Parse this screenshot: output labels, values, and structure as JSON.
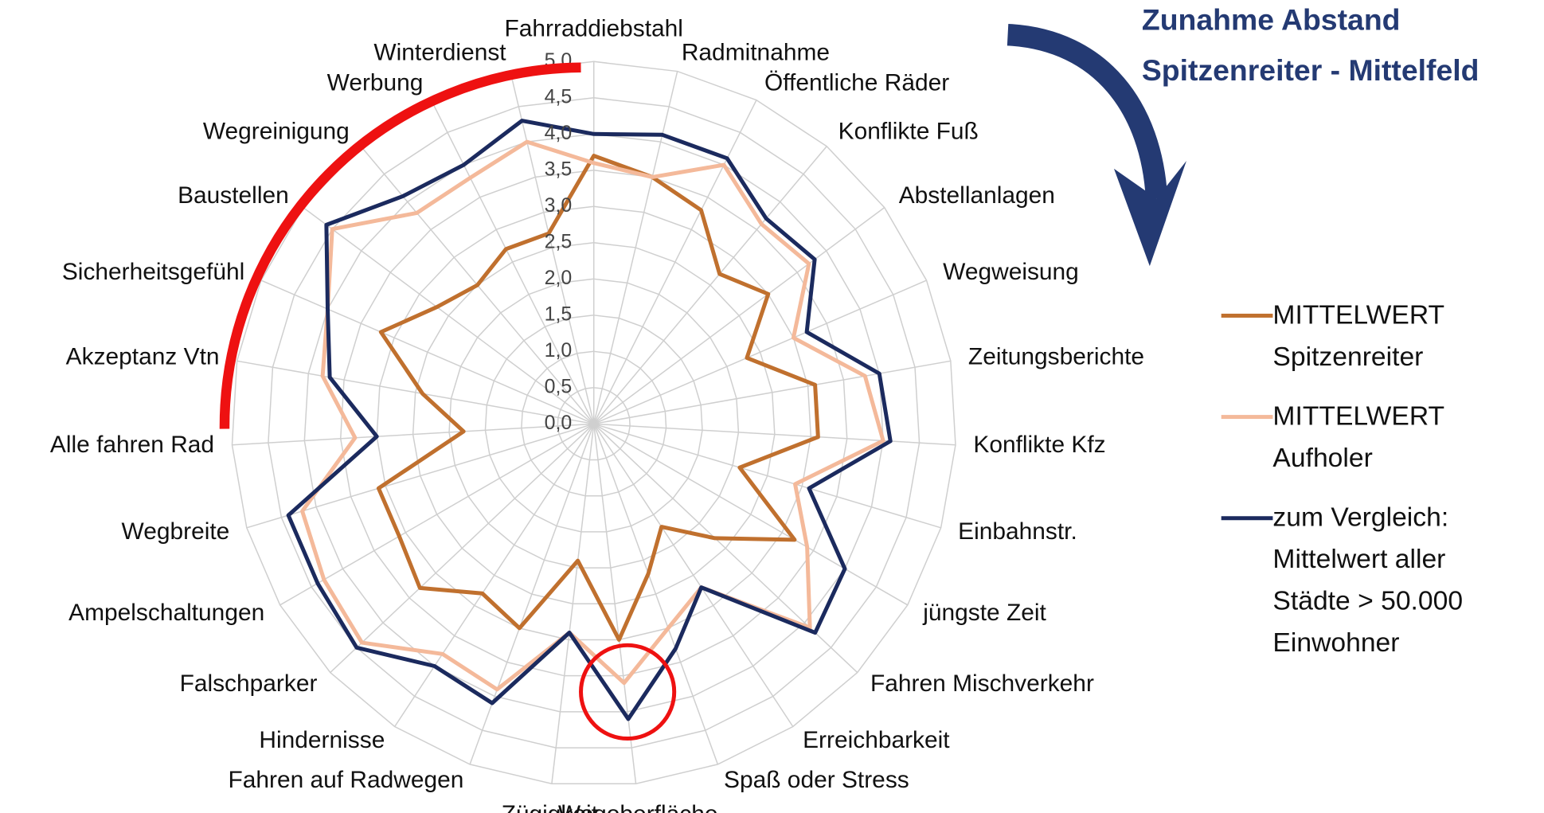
{
  "chart_data": {
    "type": "radar",
    "annotations": [
      "Zunahme Abstand",
      "Spitzenreiter - Mittelfeld"
    ],
    "categories": [
      "Fahrraddiebstahl",
      "Radmitnahme",
      "Öffentliche Räder",
      "Konflikte Fuß",
      "Abstellanlagen",
      "Wegweisung",
      "Zeitungsberichte",
      "Konflikte Kfz",
      "Einbahnstr.",
      "jüngste Zeit",
      "Fahren Mischverkehr",
      "Erreichbarkeit",
      "Spaß oder Stress",
      "Wegoberfläche",
      "Zügigkeit",
      "Fahren auf Radwegen",
      "Hindernisse",
      "Falschparker",
      "Ampelschaltungen",
      "Wegbreite",
      "Alle fahren Rad",
      "Akzeptanz Vtn",
      "Sicherheitsgefühl",
      "Baustellen",
      "Wegreinigung",
      "Werbung",
      "Winterdienst"
    ],
    "series": [
      {
        "name": "MITTELWERT Spitzenreiter",
        "color": "#c0702e",
        "values": [
          3.7,
          3.5,
          3.3,
          2.7,
          3.0,
          2.3,
          3.1,
          3.1,
          2.1,
          3.2,
          2.3,
          1.7,
          2.2,
          3.0,
          1.9,
          3.0,
          2.8,
          3.3,
          3.1,
          3.1,
          1.8,
          2.4,
          3.2,
          2.7,
          2.5,
          2.7,
          2.7
        ]
      },
      {
        "name": "MITTELWERT Aufholer",
        "color": "#f4b99a",
        "values": [
          3.6,
          3.5,
          4.0,
          3.6,
          3.7,
          3.0,
          3.8,
          4.0,
          2.9,
          3.4,
          4.1,
          2.7,
          3.0,
          3.6,
          2.9,
          3.9,
          3.8,
          4.4,
          4.3,
          4.2,
          3.3,
          3.8,
          4.0,
          4.5,
          3.8,
          3.8,
          4.0
        ]
      },
      {
        "name": "zum Vergleich: Mittelwert aller Städte > 50.000 Einwohner",
        "color": "#1b2a5e",
        "values": [
          4.0,
          4.1,
          4.1,
          3.7,
          3.8,
          3.2,
          4.0,
          4.1,
          3.1,
          4.0,
          4.2,
          2.7,
          3.3,
          4.1,
          2.9,
          4.1,
          4.0,
          4.5,
          4.4,
          4.4,
          3.0,
          3.7,
          4.0,
          4.6,
          4.1,
          4.0,
          4.3
        ]
      }
    ],
    "rlim": [
      0,
      5
    ],
    "rticks": [
      {
        "value": 0,
        "label": "0,0"
      },
      {
        "value": 0.5,
        "label": "0,5"
      },
      {
        "value": 1,
        "label": "1,0"
      },
      {
        "value": 1.5,
        "label": "1,5"
      },
      {
        "value": 2,
        "label": "2,0"
      },
      {
        "value": 2.5,
        "label": "2,5"
      },
      {
        "value": 3,
        "label": "3,0"
      },
      {
        "value": 3.5,
        "label": "3,5"
      },
      {
        "value": 4,
        "label": "4,0"
      },
      {
        "value": 4.5,
        "label": "4,5"
      },
      {
        "value": 5,
        "label": "5,0"
      }
    ],
    "grid": true
  }
}
